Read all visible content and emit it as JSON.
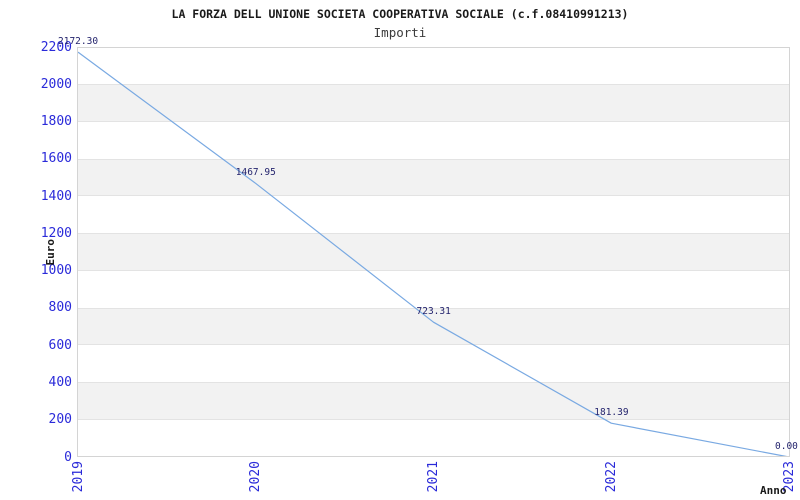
{
  "chart_data": {
    "type": "line",
    "title": "LA FORZA DELL UNIONE SOCIETA COOPERATIVA SOCIALE (c.f.08410991213)",
    "subtitle": "Importi",
    "xlabel": "Anno",
    "ylabel": "Euro",
    "categories": [
      "2019",
      "2020",
      "2021",
      "2022",
      "2023"
    ],
    "series": [
      {
        "name": "Importi",
        "values": [
          2172.3,
          1467.95,
          723.31,
          181.39,
          0.0
        ]
      }
    ],
    "point_labels": [
      "2172.30",
      "1467.95",
      "723.31",
      "181.39",
      "0.00"
    ],
    "ylim": [
      0,
      2200
    ],
    "ytick_step": 200,
    "legend": "none",
    "grid": "alternating-horizontal-bands",
    "markers": "none",
    "colors": {
      "line": "#79A9E2",
      "tick_label": "#2A2AD9",
      "point_label": "#25256E",
      "band_fill": "#F2F2F2",
      "band_edge": "#E3E3E3",
      "plot_border": "#D4D4D4",
      "text": "#1A1A1A",
      "background": "#FFFFFF"
    }
  }
}
